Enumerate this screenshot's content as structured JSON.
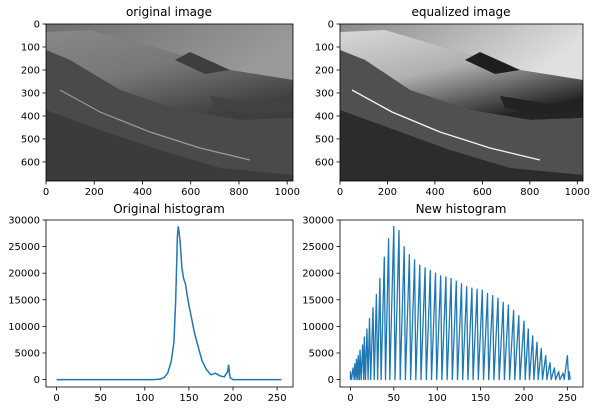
{
  "chart_data": [
    {
      "type": "image",
      "title": "original image",
      "x_ticks": [
        0,
        200,
        400,
        600,
        800,
        1000
      ],
      "y_ticks": [
        0,
        100,
        200,
        300,
        400,
        500,
        600
      ],
      "xlim": [
        0,
        1024
      ],
      "ylim": [
        683,
        0
      ],
      "colormap": "gray",
      "contrast": "low"
    },
    {
      "type": "image",
      "title": "equalized image",
      "x_ticks": [
        0,
        200,
        400,
        600,
        800,
        1000
      ],
      "y_ticks": [
        0,
        100,
        200,
        300,
        400,
        500,
        600
      ],
      "xlim": [
        0,
        1024
      ],
      "ylim": [
        683,
        0
      ],
      "colormap": "gray",
      "contrast": "high"
    },
    {
      "type": "line",
      "title": "Original histogram",
      "x_ticks": [
        0,
        50,
        100,
        150,
        200,
        250
      ],
      "y_ticks": [
        0,
        5000,
        10000,
        15000,
        20000,
        25000,
        30000
      ],
      "xlim": [
        -12,
        268
      ],
      "ylim": [
        -1400,
        30000
      ],
      "color": "#1f77b4",
      "series": [
        {
          "x": [
            0,
            110,
            118,
            122,
            126,
            130,
            133,
            135,
            137,
            138,
            140,
            142,
            144,
            146,
            148,
            150,
            153,
            156,
            160,
            165,
            170,
            175,
            180,
            185,
            190,
            194,
            195,
            196,
            197,
            200,
            210,
            230,
            255
          ],
          "y": [
            0,
            0,
            100,
            400,
            1200,
            3500,
            7000,
            15000,
            27000,
            28800,
            26000,
            21000,
            19000,
            18000,
            16000,
            14000,
            11500,
            9000,
            6500,
            3500,
            1800,
            900,
            1200,
            700,
            500,
            1500,
            2800,
            1000,
            300,
            0,
            0,
            0,
            0
          ]
        }
      ]
    },
    {
      "type": "line",
      "title": "New histogram",
      "x_ticks": [
        0,
        50,
        100,
        150,
        200,
        250
      ],
      "y_ticks": [
        0,
        5000,
        10000,
        15000,
        20000,
        25000,
        30000
      ],
      "xlim": [
        -12,
        268
      ],
      "ylim": [
        -1400,
        30000
      ],
      "color": "#1f77b4",
      "spikes": {
        "x": [
          0,
          3,
          5,
          7,
          9,
          11,
          14,
          16,
          19,
          22,
          26,
          30,
          34,
          39,
          44,
          50,
          56,
          62,
          68,
          74,
          80,
          86,
          92,
          98,
          104,
          110,
          116,
          122,
          128,
          134,
          140,
          146,
          152,
          158,
          164,
          170,
          176,
          182,
          188,
          194,
          200,
          205,
          210,
          215,
          220,
          225,
          230,
          235,
          240,
          245,
          250,
          252
        ],
        "y": [
          1500,
          2200,
          3000,
          3800,
          4500,
          5500,
          6500,
          8000,
          9500,
          11500,
          13500,
          16000,
          19000,
          23000,
          26500,
          28800,
          28000,
          25000,
          23500,
          22500,
          21500,
          21000,
          20500,
          20000,
          19500,
          19300,
          19000,
          18500,
          18000,
          17500,
          17200,
          17000,
          16800,
          16200,
          15800,
          15300,
          14500,
          14000,
          13000,
          12000,
          11000,
          9500,
          8200,
          7000,
          5800,
          4500,
          3200,
          2200,
          1500,
          1200,
          4500,
          1500
        ]
      }
    }
  ]
}
